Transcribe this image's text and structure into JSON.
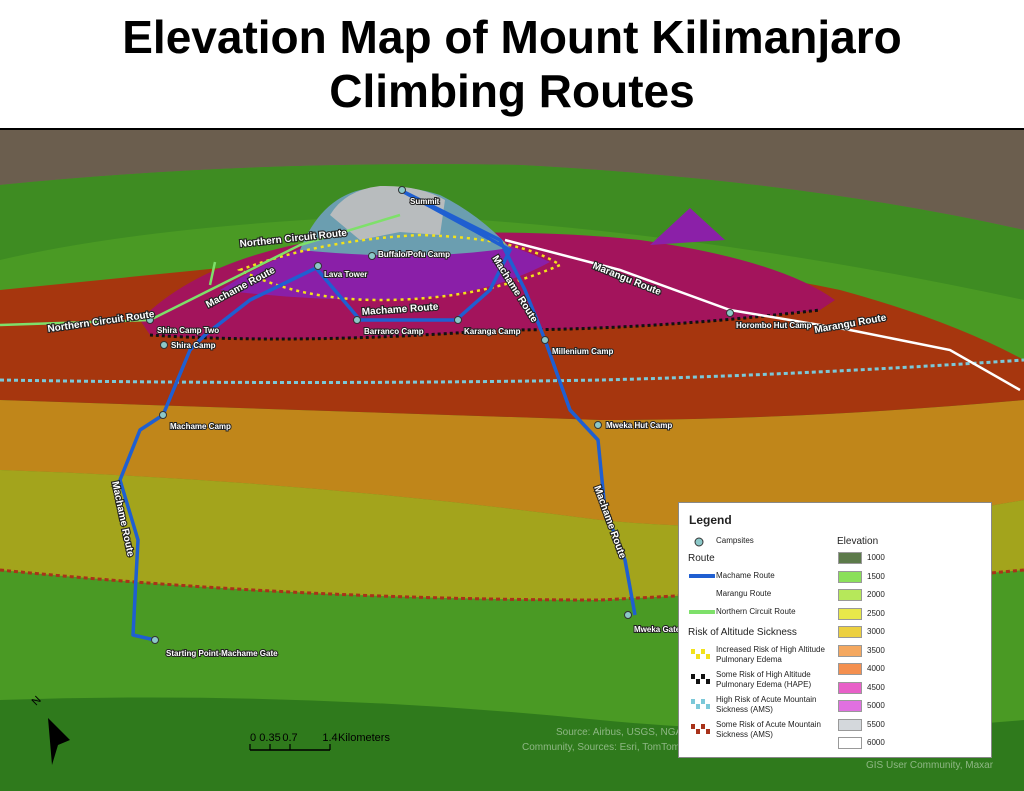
{
  "title": "Elevation Map of Mount Kilimanjaro Climbing Routes",
  "camps": [
    "Summit",
    "Buffalo/Pofu Camp",
    "Lava Tower",
    "Barranco Camp",
    "Karanga Camp",
    "Millenium Camp",
    "Horombo Hut Camp",
    "Shira Camp Two",
    "Shira Camp",
    "Machame Camp",
    "Mweka Hut Camp",
    "Mweka Gate",
    "Starting Point-Machame Gate"
  ],
  "route_labels": [
    "Northern Circuit Route",
    "Northern Circuit Route",
    "Machame Route",
    "Machame Route",
    "Machame Route",
    "Marangu Route",
    "Marangu Route",
    "Machame Route",
    "Machame Route"
  ],
  "legend": {
    "title": "Legend",
    "campsites": "Campsites",
    "route_heading": "Route",
    "routes": [
      {
        "name": "Machame Route",
        "color": "#1f5fd1"
      },
      {
        "name": "Marangu Route",
        "color": "#ffffff"
      },
      {
        "name": "Northern Circuit Route",
        "color": "#7ee06a"
      }
    ],
    "risk_heading": "Risk of Altitude Sickness",
    "risks": [
      {
        "name": "Increased Risk of High Altitude Pulmonary Edema",
        "color": "#f2e21b"
      },
      {
        "name": "Some Risk of High Altitude Pulmonary Edema (HAPE)",
        "color": "#111111"
      },
      {
        "name": "High Risk of Acute Mountain Sickness (AMS)",
        "color": "#7cc8d8"
      },
      {
        "name": "Some Risk of Acute Mountain Sickness (AMS)",
        "color": "#a8321a"
      }
    ],
    "elevation_heading": "Elevation",
    "elevation": [
      {
        "value": 1000,
        "color": "#5c7a4a"
      },
      {
        "value": 1500,
        "color": "#8be05a"
      },
      {
        "value": 2000,
        "color": "#b6e85a"
      },
      {
        "value": 2500,
        "color": "#e8e84a"
      },
      {
        "value": 3000,
        "color": "#ecd040"
      },
      {
        "value": 3500,
        "color": "#f4a860"
      },
      {
        "value": 4000,
        "color": "#f49050"
      },
      {
        "value": 4500,
        "color": "#e860c8"
      },
      {
        "value": 5000,
        "color": "#e070e0"
      },
      {
        "value": 5500,
        "color": "#d4d8dc"
      },
      {
        "value": 6000,
        "color": "#ffffff"
      }
    ]
  },
  "scale_bar": {
    "ticks": [
      0,
      0.35,
      0.7,
      1.4
    ],
    "unit": "Kilometers"
  },
  "north": "N",
  "credits": [
    "Source: Airbus, USGS, NGA,",
    "Community, Sources: Esri, TomTom",
    "GIS User Community, Maxar"
  ]
}
